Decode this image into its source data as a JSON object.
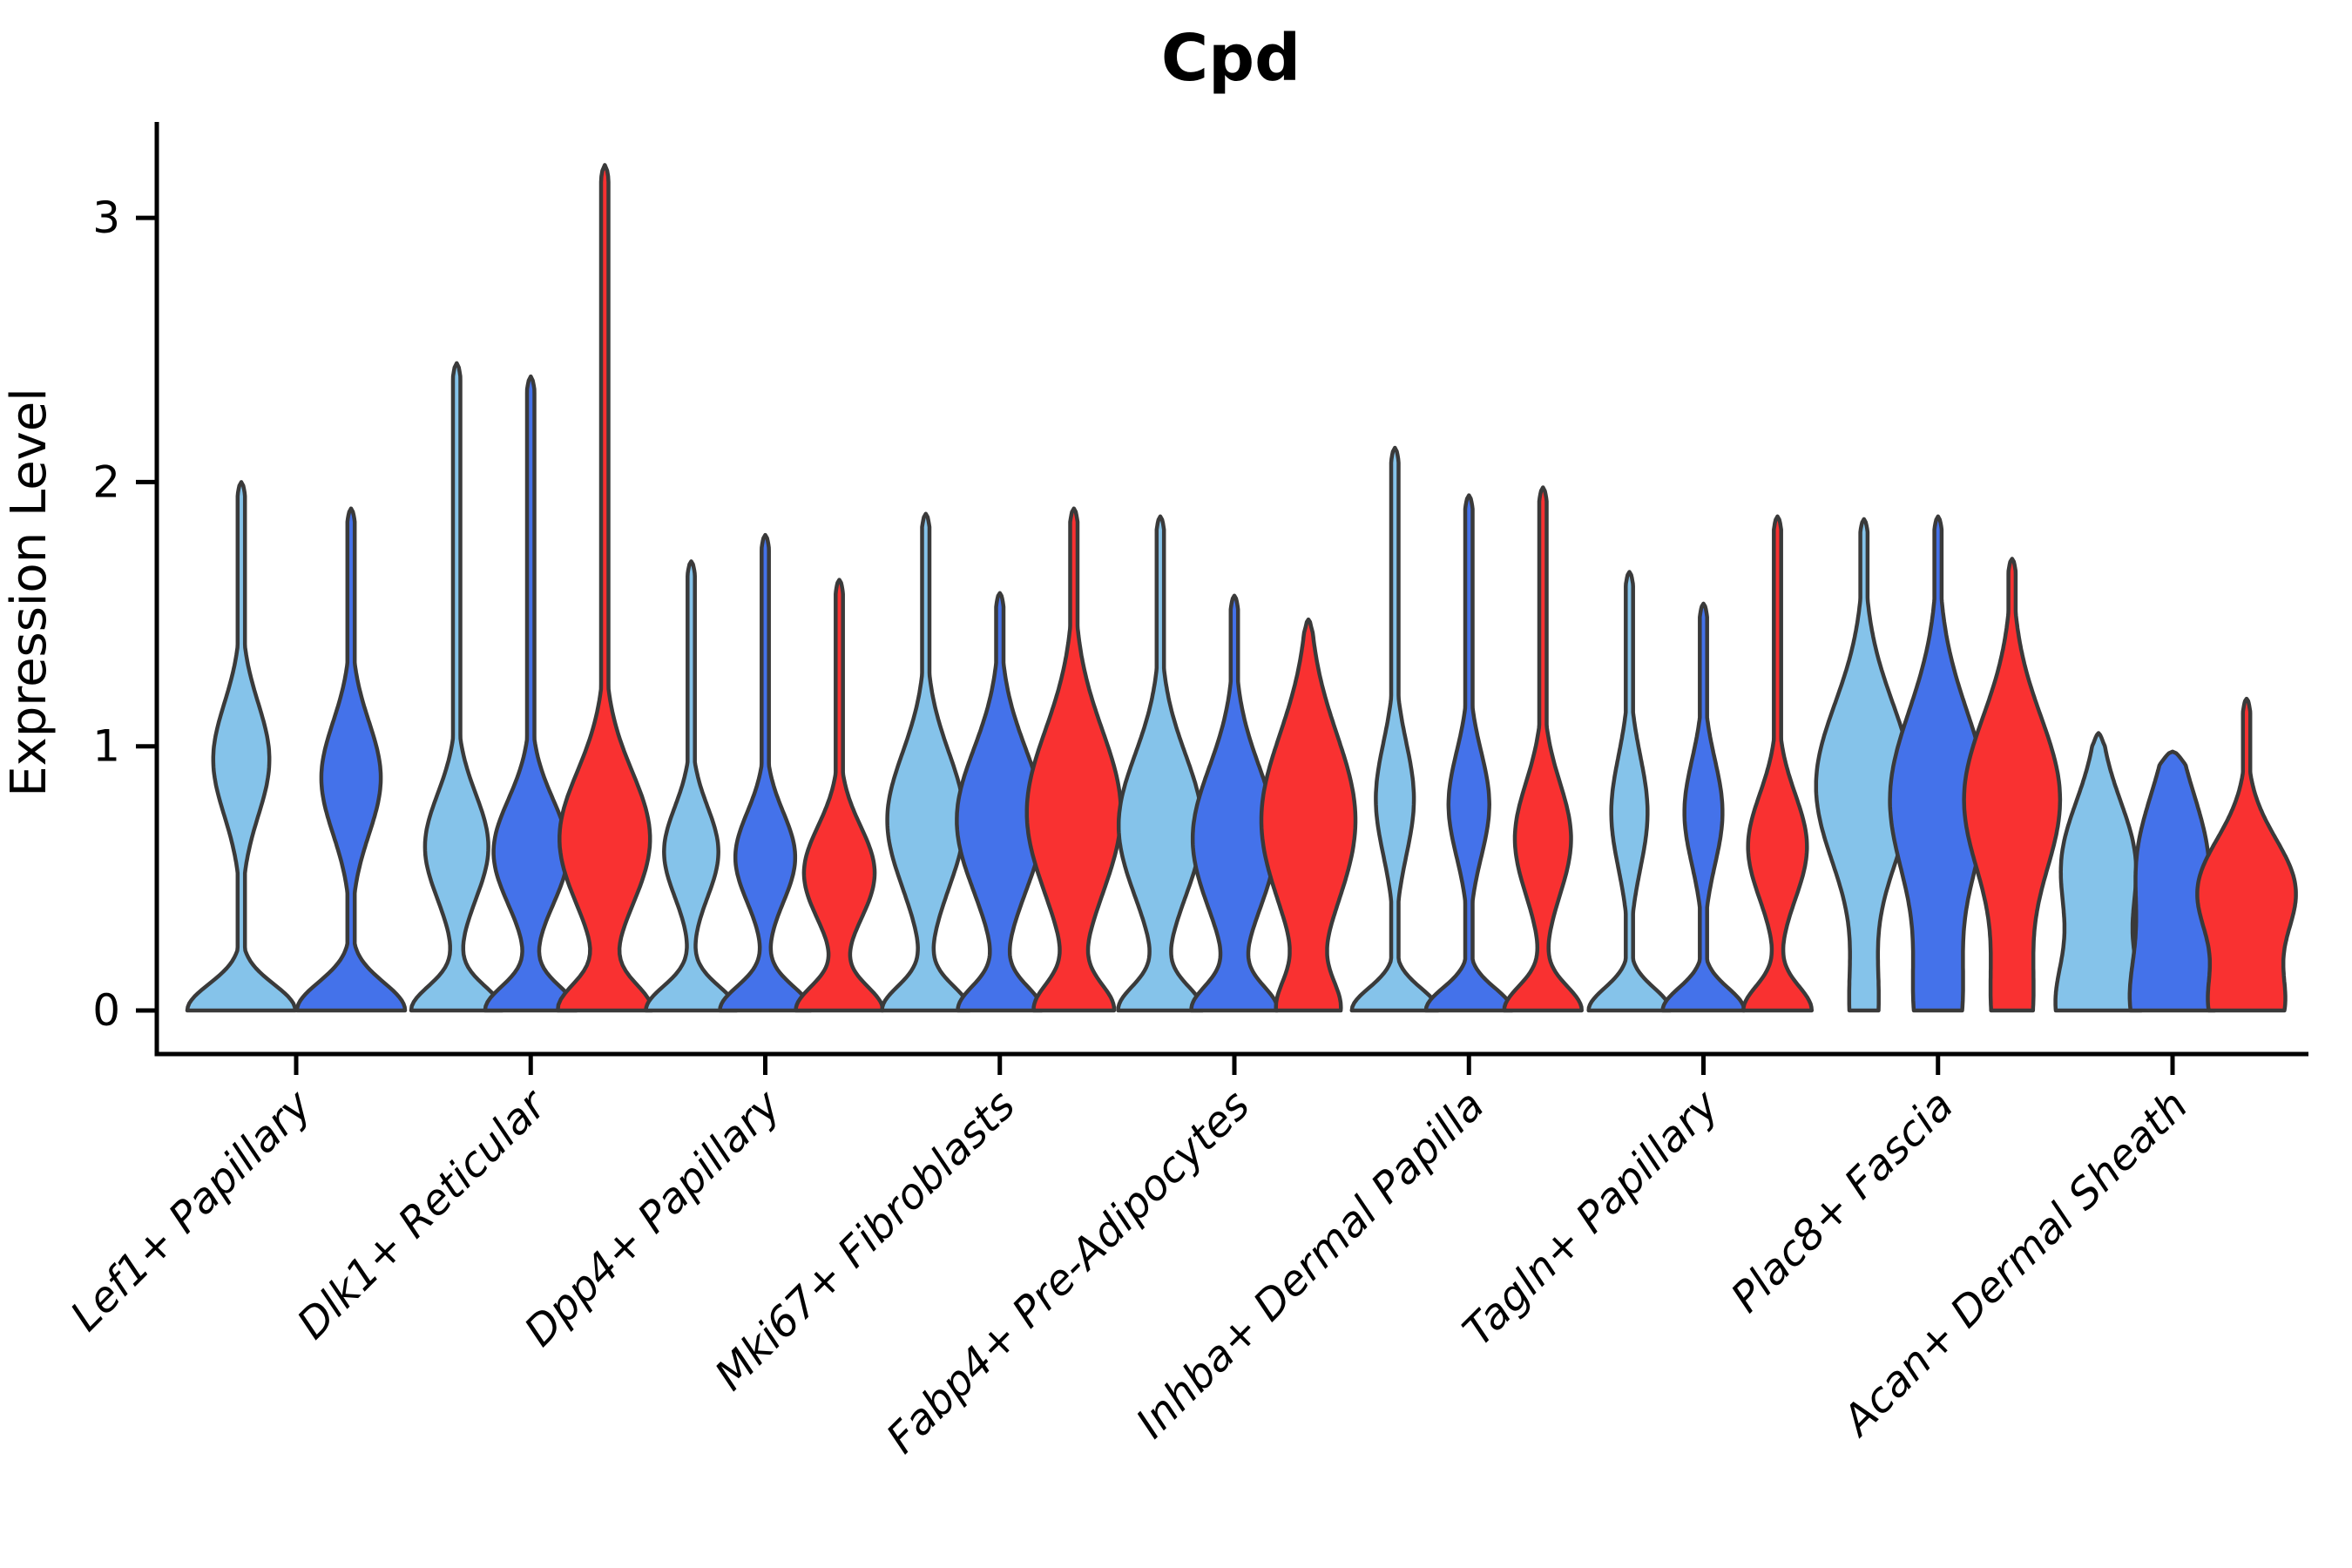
{
  "title": "Cpd",
  "y_axis": {
    "label": "Expression Level",
    "ticks": [
      "0",
      "1",
      "2",
      "3"
    ]
  },
  "colors": {
    "series": [
      "#85C3EA",
      "#4472EA",
      "#F93131"
    ],
    "outline": "#3A3A3A",
    "axis": "#000000",
    "text": "#000000",
    "background": "#FFFFFF"
  },
  "chart_data": {
    "type": "violin",
    "title": "Cpd",
    "ylabel": "Expression Level",
    "yticks": [
      0,
      1,
      2,
      3
    ],
    "ylim": [
      0,
      3.38
    ],
    "x_tick_rotation": 45,
    "legend": "none",
    "series_colors": [
      "#85C3EA",
      "#4472EA",
      "#F93131"
    ],
    "categories": [
      "Lef1+ Papillary",
      "Dlk1+ Reticular",
      "Dpp4+ Papillary",
      "Mki67+ Fibroblasts",
      "Fabp4+ Pre-Adipocytes",
      "Inhba+ Dermal Papilla",
      "Tagln+ Papillary",
      "Plac8+ Fascia",
      "Acan+ Dermal Sheath"
    ],
    "groups": [
      {
        "label": "Lef1+ Papillary",
        "violins": [
          {
            "series": 0,
            "max": 2.0,
            "base_amp": 1.0,
            "base_sig": 0.14,
            "bulge_ctr": 0.95,
            "bulge_sig": 0.3,
            "bulge_amp": 0.52,
            "half_width": 62
          },
          {
            "series": 1,
            "max": 1.9,
            "base_amp": 1.0,
            "base_sig": 0.15,
            "bulge_ctr": 0.88,
            "bulge_sig": 0.3,
            "bulge_amp": 0.55,
            "half_width": 62
          }
        ]
      },
      {
        "label": "Dlk1+ Reticular",
        "violins": [
          {
            "series": 0,
            "max": 2.45,
            "base_amp": 1.0,
            "base_sig": 0.13,
            "bulge_ctr": 0.62,
            "bulge_sig": 0.28,
            "bulge_amp": 0.7,
            "half_width": 52
          },
          {
            "series": 1,
            "max": 2.4,
            "base_amp": 1.0,
            "base_sig": 0.13,
            "bulge_ctr": 0.6,
            "bulge_sig": 0.28,
            "bulge_amp": 0.82,
            "half_width": 52
          },
          {
            "series": 2,
            "max": 3.2,
            "base_amp": 1.0,
            "base_sig": 0.14,
            "bulge_ctr": 0.65,
            "bulge_sig": 0.36,
            "bulge_amp": 1.0,
            "half_width": 52
          }
        ]
      },
      {
        "label": "Dpp4+ Papillary",
        "violins": [
          {
            "series": 0,
            "max": 1.7,
            "base_amp": 1.0,
            "base_sig": 0.13,
            "bulge_ctr": 0.6,
            "bulge_sig": 0.24,
            "bulge_amp": 0.6,
            "half_width": 52
          },
          {
            "series": 1,
            "max": 1.8,
            "base_amp": 1.0,
            "base_sig": 0.13,
            "bulge_ctr": 0.58,
            "bulge_sig": 0.24,
            "bulge_amp": 0.66,
            "half_width": 52
          },
          {
            "series": 2,
            "max": 1.63,
            "base_amp": 0.95,
            "base_sig": 0.13,
            "bulge_ctr": 0.52,
            "bulge_sig": 0.25,
            "bulge_amp": 0.78,
            "half_width": 52
          }
        ]
      },
      {
        "label": "Mki67+ Fibroblasts",
        "violins": [
          {
            "series": 0,
            "max": 1.88,
            "base_amp": 0.95,
            "base_sig": 0.13,
            "bulge_ctr": 0.72,
            "bulge_sig": 0.36,
            "bulge_amp": 0.85,
            "half_width": 52
          },
          {
            "series": 1,
            "max": 1.58,
            "base_amp": 0.9,
            "base_sig": 0.13,
            "bulge_ctr": 0.72,
            "bulge_sig": 0.38,
            "bulge_amp": 0.95,
            "half_width": 52
          },
          {
            "series": 2,
            "max": 1.9,
            "base_amp": 0.8,
            "base_sig": 0.14,
            "bulge_ctr": 0.75,
            "bulge_sig": 0.44,
            "bulge_amp": 1.0,
            "half_width": 54
          }
        ]
      },
      {
        "label": "Fabp4+ Pre-Adipocytes",
        "violins": [
          {
            "series": 0,
            "max": 1.87,
            "base_amp": 0.9,
            "base_sig": 0.13,
            "bulge_ctr": 0.7,
            "bulge_sig": 0.38,
            "bulge_amp": 0.92,
            "half_width": 52
          },
          {
            "series": 1,
            "max": 1.57,
            "base_amp": 0.9,
            "base_sig": 0.13,
            "bulge_ctr": 0.65,
            "bulge_sig": 0.38,
            "bulge_amp": 0.92,
            "half_width": 52
          },
          {
            "series": 2,
            "max": 1.48,
            "base_amp": 0.6,
            "base_sig": 0.16,
            "bulge_ctr": 0.72,
            "bulge_sig": 0.46,
            "bulge_amp": 1.0,
            "half_width": 54
          }
        ]
      },
      {
        "label": "Inhba+ Dermal Papilla",
        "violins": [
          {
            "series": 0,
            "max": 2.13,
            "base_amp": 0.95,
            "base_sig": 0.12,
            "bulge_ctr": 0.8,
            "bulge_sig": 0.3,
            "bulge_amp": 0.42,
            "half_width": 52
          },
          {
            "series": 1,
            "max": 1.95,
            "base_amp": 0.95,
            "base_sig": 0.12,
            "bulge_ctr": 0.78,
            "bulge_sig": 0.28,
            "bulge_amp": 0.45,
            "half_width": 52
          },
          {
            "series": 2,
            "max": 1.98,
            "base_amp": 0.85,
            "base_sig": 0.13,
            "bulge_ctr": 0.65,
            "bulge_sig": 0.3,
            "bulge_amp": 0.62,
            "half_width": 52
          }
        ]
      },
      {
        "label": "Tagln+ Papillary",
        "violins": [
          {
            "series": 0,
            "max": 1.66,
            "base_amp": 0.9,
            "base_sig": 0.12,
            "bulge_ctr": 0.75,
            "bulge_sig": 0.3,
            "bulge_amp": 0.4,
            "half_width": 52
          },
          {
            "series": 1,
            "max": 1.54,
            "base_amp": 0.9,
            "base_sig": 0.12,
            "bulge_ctr": 0.75,
            "bulge_sig": 0.28,
            "bulge_amp": 0.42,
            "half_width": 52
          },
          {
            "series": 2,
            "max": 1.87,
            "base_amp": 0.75,
            "base_sig": 0.13,
            "bulge_ctr": 0.62,
            "bulge_sig": 0.28,
            "bulge_amp": 0.65,
            "half_width": 52
          }
        ]
      },
      {
        "label": "Plac8+ Fascia",
        "violins": [
          {
            "series": 0,
            "max": 1.86,
            "base_amp": 0.28,
            "base_sig": 0.3,
            "bulge_ctr": 0.85,
            "bulge_sig": 0.44,
            "bulge_amp": 1.0,
            "half_width": 55
          },
          {
            "series": 1,
            "max": 1.87,
            "base_amp": 0.45,
            "base_sig": 0.35,
            "bulge_ctr": 0.8,
            "bulge_sig": 0.47,
            "bulge_amp": 1.0,
            "half_width": 55
          },
          {
            "series": 2,
            "max": 1.71,
            "base_amp": 0.4,
            "base_sig": 0.35,
            "bulge_ctr": 0.8,
            "bulge_sig": 0.44,
            "bulge_amp": 1.0,
            "half_width": 55
          }
        ]
      },
      {
        "label": "Acan+ Dermal Sheath",
        "violins": [
          {
            "series": 0,
            "max": 1.05,
            "base_amp": 0.85,
            "base_sig": 0.28,
            "bulge_ctr": 0.55,
            "bulge_sig": 0.34,
            "bulge_amp": 0.78,
            "half_width": 54
          },
          {
            "series": 1,
            "max": 0.98,
            "base_amp": 0.8,
            "base_sig": 0.3,
            "bulge_ctr": 0.55,
            "bulge_sig": 0.38,
            "bulge_amp": 0.75,
            "half_width": 54
          },
          {
            "series": 2,
            "max": 1.18,
            "base_amp": 0.7,
            "base_sig": 0.22,
            "bulge_ctr": 0.45,
            "bulge_sig": 0.28,
            "bulge_amp": 1.0,
            "half_width": 56
          }
        ]
      }
    ]
  }
}
